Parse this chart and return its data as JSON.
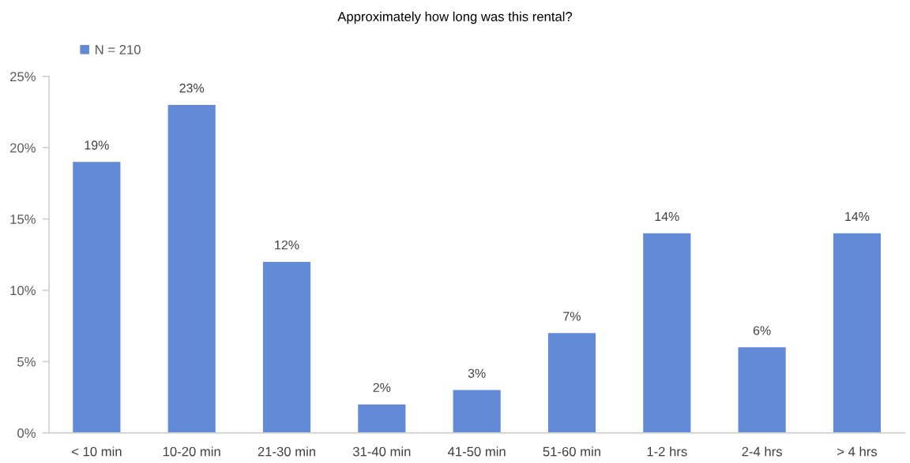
{
  "chart_data": {
    "type": "bar",
    "title": "Approximately how long was this rental?",
    "categories": [
      "< 10 min",
      "10-20 min",
      "21-30 min",
      "31-40 min",
      "41-50 min",
      "51-60 min",
      "1-2 hrs",
      "2-4 hrs",
      "> 4 hrs"
    ],
    "series": [
      {
        "name": "N = 210",
        "color": "#628ad6",
        "values": [
          19,
          23,
          12,
          2,
          3,
          7,
          14,
          6,
          14
        ],
        "value_labels": [
          "19%",
          "23%",
          "12%",
          "2%",
          "3%",
          "7%",
          "14%",
          "6%",
          "14%"
        ]
      }
    ],
    "ylim": [
      0,
      25
    ],
    "yticks": [
      {
        "value": 0,
        "label": "0%"
      },
      {
        "value": 5,
        "label": "5%"
      },
      {
        "value": 10,
        "label": "10%"
      },
      {
        "value": 15,
        "label": "15%"
      },
      {
        "value": 20,
        "label": "20%"
      },
      {
        "value": 25,
        "label": "25%"
      }
    ],
    "grid": false,
    "legend": "top left"
  }
}
